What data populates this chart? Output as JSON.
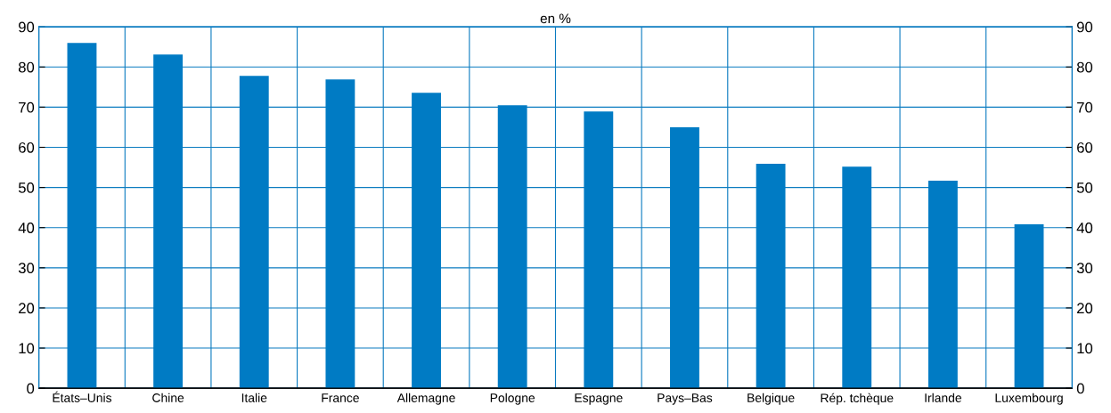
{
  "chart_data": {
    "type": "bar",
    "title": "en %",
    "categories": [
      "États–Unis",
      "Chine",
      "Italie",
      "France",
      "Allemagne",
      "Pologne",
      "Espagne",
      "Pays–Bas",
      "Belgique",
      "Rép. tchèque",
      "Irlande",
      "Luxembourg"
    ],
    "values": [
      86.0,
      83.1,
      77.8,
      76.9,
      73.6,
      70.5,
      68.9,
      65.0,
      55.9,
      55.2,
      51.7,
      40.8
    ],
    "color": "#007bc4",
    "ylim": [
      0,
      90
    ],
    "yticks": [
      0,
      10,
      20,
      30,
      40,
      50,
      60,
      70,
      80,
      90
    ],
    "y2lim": [
      0,
      90
    ],
    "y2ticks": [
      0,
      10,
      20,
      30,
      40,
      50,
      60,
      70,
      80,
      90
    ],
    "grid": true
  }
}
